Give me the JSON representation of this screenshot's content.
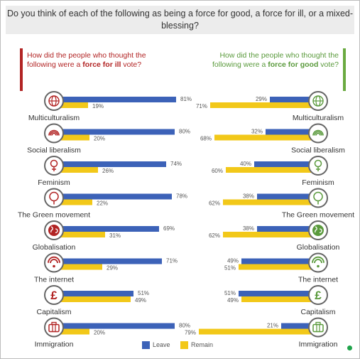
{
  "question": "Do you think of each of the following as being a force for good, a force for ill, or a mixed-blessing?",
  "left_panel": {
    "title_pre": "How did the people who thought the following were a ",
    "title_bold": "force for ill",
    "title_post": " vote?"
  },
  "right_panel": {
    "title_pre": "How did the people who thought the following were a ",
    "title_bold": "force for good",
    "title_post": " vote?"
  },
  "legend": {
    "leave": "Leave",
    "remain": "Remain"
  },
  "colors": {
    "leave": "#3c62b8",
    "remain": "#f2c819",
    "ill": "#b22424",
    "good": "#5a9a3c",
    "icon": "#666666"
  },
  "chart_data": [
    {
      "type": "bar",
      "title": "How did the people who thought the following were a force for ill vote?",
      "categories": [
        "Multiculturalism",
        "Social liberalism",
        "Feminism",
        "The Green movement",
        "Globalisation",
        "The internet",
        "Capitalism",
        "Immigration"
      ],
      "icons": [
        "globe-icon",
        "rainbow-icon",
        "feminism-icon",
        "tree-icon",
        "earth-icon",
        "wifi-icon",
        "pound-icon",
        "luggage-icon"
      ],
      "series": [
        {
          "name": "Leave",
          "values": [
            81,
            80,
            74,
            78,
            69,
            71,
            51,
            80
          ],
          "labels": [
            "81%",
            "80%",
            "74%",
            "78%",
            "69%",
            "71%",
            "51%",
            "80%"
          ]
        },
        {
          "name": "Remain",
          "values": [
            19,
            20,
            26,
            22,
            31,
            29,
            49,
            20
          ],
          "labels": [
            "19%",
            "20%",
            "26%",
            "22%",
            "31%",
            "29%",
            "49%",
            "20%"
          ]
        }
      ]
    },
    {
      "type": "bar",
      "title": "How did the people who thought the following were a force for good vote?",
      "categories": [
        "Multiculturalism",
        "Social liberalism",
        "Feminism",
        "The Green movement",
        "Globalisation",
        "The internet",
        "Capitalism",
        "Immigration"
      ],
      "icons": [
        "globe-icon",
        "rainbow-icon",
        "feminism-icon",
        "tree-icon",
        "earth-icon",
        "wifi-icon",
        "pound-icon",
        "luggage-icon"
      ],
      "series": [
        {
          "name": "Leave",
          "values": [
            29,
            32,
            40,
            38,
            38,
            49,
            51,
            21
          ],
          "labels": [
            "29%",
            "32%",
            "40%",
            "38%",
            "38%",
            "49%",
            "51%",
            "21%"
          ]
        },
        {
          "name": "Remain",
          "values": [
            71,
            68,
            60,
            62,
            62,
            51,
            49,
            79
          ],
          "labels": [
            "71%",
            "68%",
            "60%",
            "62%",
            "62%",
            "51%",
            "49%",
            "79%"
          ]
        }
      ]
    }
  ]
}
